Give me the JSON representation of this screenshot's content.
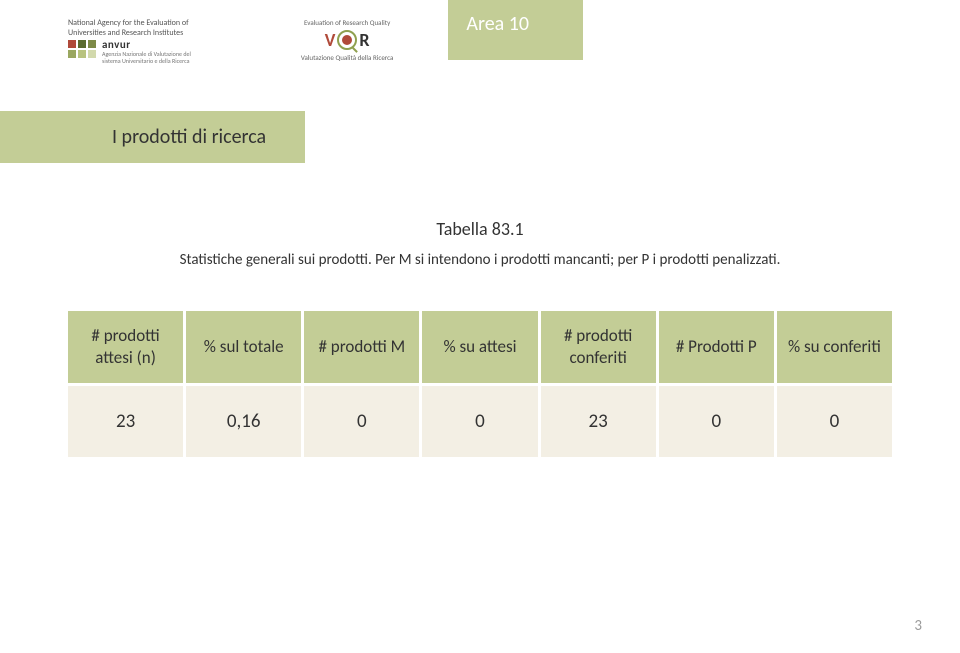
{
  "header": {
    "anvur": {
      "top_line": "National Agency for the Evaluation of",
      "top_line2": "Universities and Research Institutes",
      "brand": "anvur",
      "sub1": "Agenzia Nazionale di Valutazione del",
      "sub2": "sistema Universitario e della Ricerca",
      "box_colors": [
        "#b04a3a",
        "#5a6b2f",
        "#7d8a47",
        "#9aa760",
        "#b8c37f",
        "#d2d9ac"
      ]
    },
    "vqr": {
      "label_top": "Evaluation of Research Quality",
      "label_bottom": "Valutazione Qualità della Ricerca"
    },
    "area_label": "Area 10"
  },
  "section_title": "I prodotti di ricerca",
  "table": {
    "title": "Tabella 83.1",
    "caption": "Statistiche generali sui prodotti. Per M si intendono i prodotti mancanti; per P i prodotti penalizzati.",
    "columns": [
      "# prodotti attesi (n)",
      "% sul totale",
      "# prodotti M",
      "% su attesi",
      "# prodotti conferiti",
      "# Prodotti P",
      "% su conferiti"
    ],
    "rows": [
      [
        "23",
        "0,16",
        "0",
        "0",
        "23",
        "0",
        "0"
      ]
    ],
    "header_bg": "#c3cd96",
    "row_bg": "#f3efe4",
    "col_width_pct": 14.28
  },
  "page_number": "3",
  "colors": {
    "olive": "#c3cd96",
    "cream": "#f3efe4",
    "text": "#333333",
    "white": "#ffffff"
  }
}
